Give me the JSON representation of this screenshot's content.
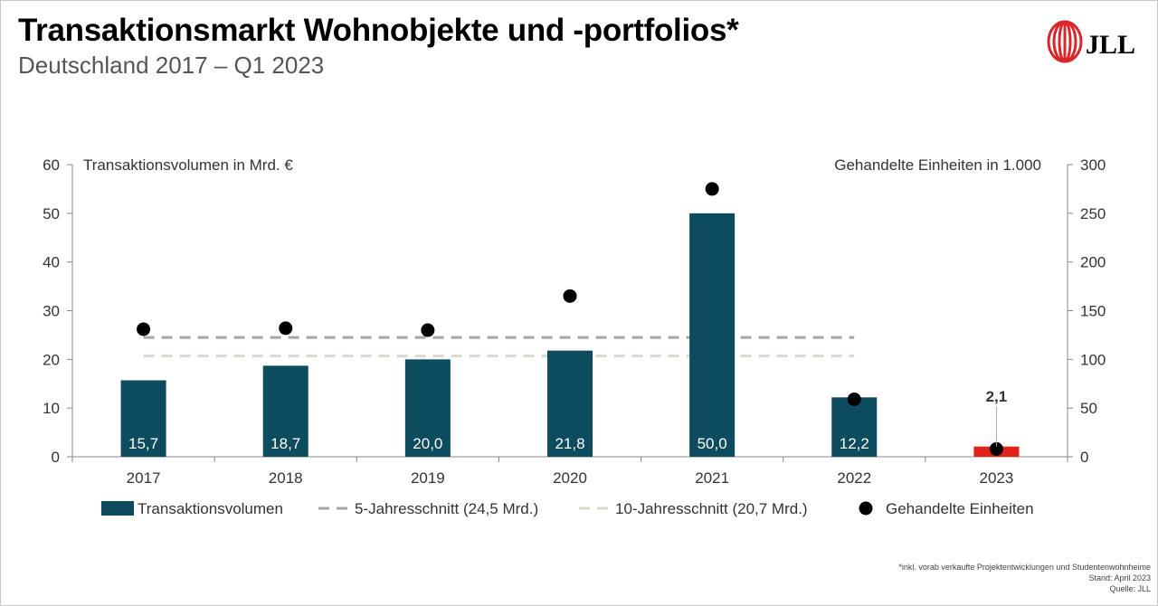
{
  "title": "Transaktionsmarkt Wohnobjekte und -portfolios*",
  "subtitle": "Deutschland 2017 – Q1 2023",
  "logo": {
    "text": "JLL",
    "color": "#d9262a"
  },
  "footnotes": {
    "note": "*inkl. vorab verkaufte Projektentwicklungen und Studentenwohnheime",
    "stand": "Stand: April 2023",
    "quelle": "Quelle: JLL"
  },
  "colors": {
    "bar": "#0d4b5e",
    "bar_highlight": "#e2231a",
    "avg5": "#a6a6a6",
    "avg10": "#d9d9cc",
    "dots": "#000000"
  },
  "chart_data": {
    "type": "bar",
    "categories": [
      "2017",
      "2018",
      "2019",
      "2020",
      "2021",
      "2022",
      "2023"
    ],
    "left_axis": {
      "label": "Transaktionsvolumen in Mrd. €",
      "ylim": [
        0,
        60
      ],
      "ticks": [
        "0",
        "10",
        "20",
        "30",
        "40",
        "50",
        "60"
      ]
    },
    "right_axis": {
      "label": "Gehandelte Einheiten in 1.000",
      "ylim": [
        0,
        300
      ],
      "ticks": [
        "0",
        "50",
        "100",
        "150",
        "200",
        "250",
        "300"
      ]
    },
    "series": [
      {
        "name": "Transaktionsvolumen",
        "type": "bar",
        "axis": "left",
        "values": [
          15.7,
          18.7,
          20.0,
          21.8,
          50.0,
          12.2,
          2.1
        ],
        "labels": [
          "15,7",
          "18,7",
          "20,0",
          "21,8",
          "50,0",
          "12,2",
          "2,1"
        ],
        "highlight_index": 6
      },
      {
        "name": "5-Jahresschnitt (24,5 Mrd.)",
        "type": "line",
        "style": "dashed",
        "axis": "left",
        "value": 24.5
      },
      {
        "name": "10-Jahresschnitt (20,7 Mrd.)",
        "type": "line",
        "style": "dashed",
        "axis": "left",
        "value": 20.7
      },
      {
        "name": "Gehandelte Einheiten",
        "type": "scatter",
        "axis": "right",
        "values": [
          131,
          132,
          130,
          165,
          275,
          59,
          8
        ]
      }
    ],
    "legend_position": "bottom",
    "grid": false
  }
}
